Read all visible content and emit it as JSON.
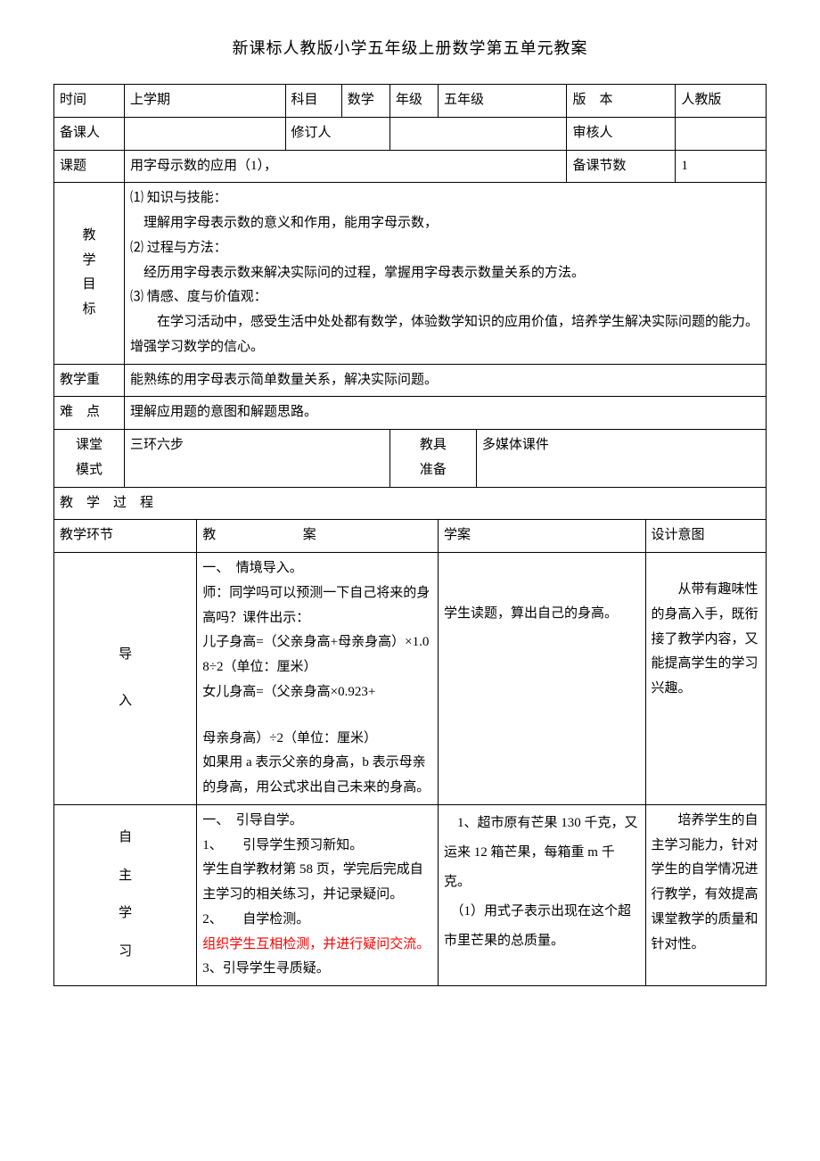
{
  "title": "新课标人教版小学五年级上册数学第五单元教案",
  "row1": {
    "c1": "时间",
    "c2": "上学期",
    "c3": "科目",
    "c4": "数学",
    "c5": "年级",
    "c6": "五年级",
    "c7": "版　本",
    "c8": "人教版"
  },
  "row2": {
    "c1": "备课人",
    "c2": "",
    "c3": "修订人",
    "c4": "",
    "c5": "审核人",
    "c6": ""
  },
  "row3": {
    "c1": "课题",
    "c2": "用字母示数的应用（1），",
    "c3": "备课节数",
    "c4": "1"
  },
  "goals": {
    "label_l1": "教",
    "label_l2": "学",
    "label_l3": "目",
    "label_l4": "标",
    "p1": "⑴ 知识与技能：",
    "p2": "　理解用字母表示数的意义和作用，能用字母示数，",
    "p3": "⑵ 过程与方法：",
    "p4": "　经历用字母表示数来解决实际问的过程，掌握用字母表示数量关系的方法。",
    "p5": "⑶ 情感、度与价值观：",
    "p6": "　　在学习活动中，感受生活中处处都有数学，体验数学知识的应用价值，培养学生解决实际问题的能力。增强学习数学的信心。"
  },
  "keypoint": {
    "label": "教学重",
    "content": "能熟练的用字母表示简单数量关系，解决实际问题。"
  },
  "difficulty": {
    "label": "难　点",
    "content": "理解应用题的意图和解题思路。"
  },
  "mode": {
    "label_l1": "课堂",
    "label_l2": "模式",
    "value": "三环六步",
    "tool_label_l1": "教具",
    "tool_label_l2": "准备",
    "tool_value": "多媒体课件"
  },
  "process_header": "教　学　过　程",
  "cols": {
    "c1": "教学环节",
    "c2": "教　　案",
    "c3": "学案",
    "c4": "设计意图"
  },
  "intro": {
    "label_l1": "导",
    "label_l2": "入",
    "jiaoan_p1": "一、　情境导入。",
    "jiaoan_p2": "师：同学吗可以预测一下自己将来的身高吗？课件出示：",
    "jiaoan_p3": "儿子身高=（父亲身高+母亲身高）×1.08÷2（单位：厘米）",
    "jiaoan_p4": "女儿身高=（父亲身高×0.923+",
    "jiaoan_p5": "母亲身高）÷2（单位：厘米）",
    "jiaoan_p6": "如果用 a 表示父亲的身高，b 表示母亲的身高，用公式求出自己未来的身高。",
    "xuean": "学生读题，算出自己的身高。",
    "design": "　　从带有趣味性的身高入手，既衔接了教学内容，又能提高学生的学习兴趣。"
  },
  "self": {
    "label_l1": "自",
    "label_l2": "主",
    "label_l3": "学",
    "label_l4": "习",
    "jiaoan_p1": "一、　引导自学。",
    "jiaoan_p2": "1、　　引导学生预习新知。",
    "jiaoan_p3": "学生自学教材第 58 页，学完后完成自主学习的相关练习，并记录疑问。",
    "jiaoan_p4": "2、　　自学检测。",
    "jiaoan_p5_red": "组织学生互相检测，并进行疑问交流。",
    "jiaoan_p6": "3、引导学生寻质疑。",
    "xuean_p1": "　1、超市原有芒果 130 千克，又运来 12 箱芒果，每箱重 m 千克。",
    "xuean_p2": "　（1）用式子表示出现在这个超市里芒果的总质量。",
    "design": "　　培养学生的自主学习能力，针对学生的自学情况进行教学，有效提高课堂教学的质量和针对性。"
  }
}
